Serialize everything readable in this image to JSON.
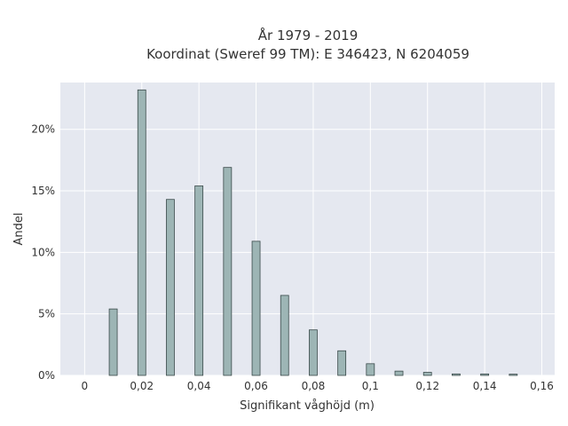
{
  "chart_data": {
    "type": "bar",
    "title_lines": [
      "År 1979 - 2019",
      "Koordinat (Sweref 99 TM): E 346423, N 6204059"
    ],
    "xlabel": "Signifikant våghöjd (m)",
    "ylabel": "Andel",
    "x": [
      0.01,
      0.02,
      0.03,
      0.04,
      0.05,
      0.06,
      0.07,
      0.08,
      0.09,
      0.1,
      0.11,
      0.12,
      0.13,
      0.14,
      0.15
    ],
    "values": [
      5.4,
      23.2,
      14.3,
      15.4,
      16.9,
      10.9,
      6.5,
      3.7,
      2.0,
      0.95,
      0.35,
      0.25,
      0.12,
      0.12,
      0.1
    ],
    "xlim": [
      -0.0085,
      0.1645
    ],
    "ylim": [
      0,
      23.8
    ],
    "xticks": [
      {
        "value": 0,
        "label": "0"
      },
      {
        "value": 0.02,
        "label": "0,02"
      },
      {
        "value": 0.04,
        "label": "0,04"
      },
      {
        "value": 0.06,
        "label": "0,06"
      },
      {
        "value": 0.08,
        "label": "0,08"
      },
      {
        "value": 0.1,
        "label": "0,1"
      },
      {
        "value": 0.12,
        "label": "0,12"
      },
      {
        "value": 0.14,
        "label": "0,14"
      },
      {
        "value": 0.16,
        "label": "0,16"
      }
    ],
    "yticks": [
      {
        "value": 0,
        "label": "0%"
      },
      {
        "value": 5,
        "label": "5%"
      },
      {
        "value": 10,
        "label": "10%"
      },
      {
        "value": 15,
        "label": "15%"
      },
      {
        "value": 20,
        "label": "20%"
      }
    ],
    "grid": true,
    "colors": {
      "plot_background": "#e5e8f0",
      "grid": "#ffffff",
      "bar_fill": "#9db5b5",
      "bar_stroke": "#3a4a4a"
    }
  }
}
